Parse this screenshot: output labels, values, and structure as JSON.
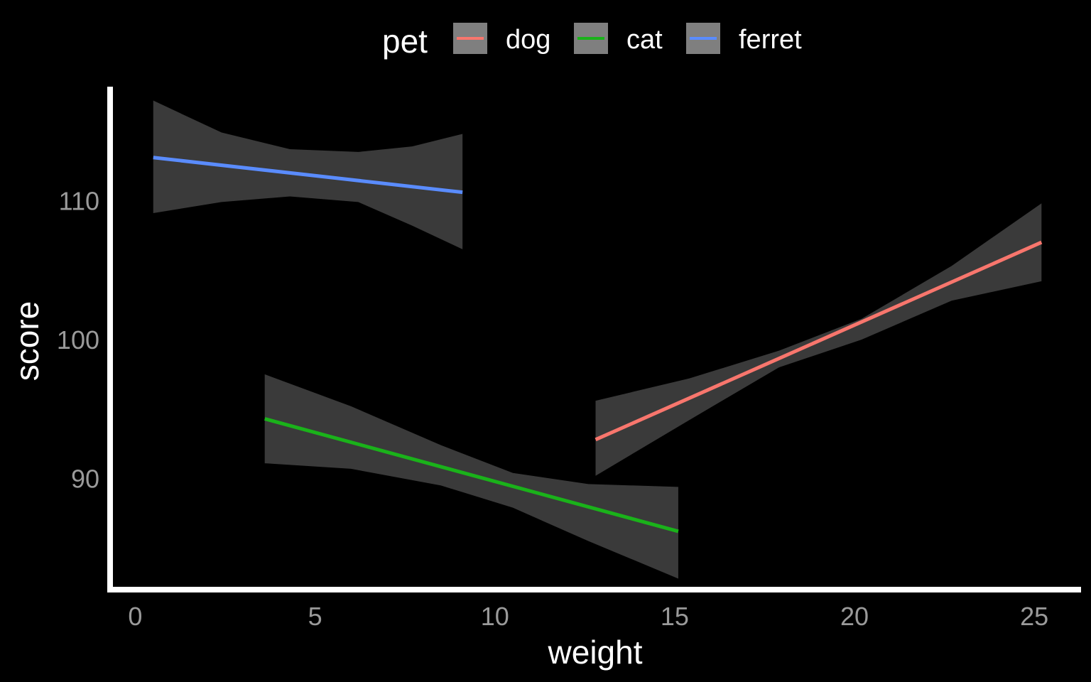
{
  "chart_data": {
    "type": "line",
    "xlabel": "weight",
    "ylabel": "score",
    "xlim": [
      -0.7,
      26.3
    ],
    "ylim": [
      81.8,
      118.2
    ],
    "x_ticks": [
      0,
      5,
      10,
      15,
      20,
      25
    ],
    "y_ticks": [
      90,
      100,
      110
    ],
    "grid": false,
    "legend": {
      "title": "pet",
      "position": "top",
      "entries": [
        "dog",
        "cat",
        "ferret"
      ]
    },
    "background": "#000000",
    "axis_color": "#ffffff",
    "ribbon_color": "#3a3a3a",
    "series": [
      {
        "name": "dog",
        "color": "#f8766d",
        "x": [
          12.8,
          25.2
        ],
        "y": [
          92.8,
          107.0
        ],
        "band_x": [
          12.8,
          15.4,
          17.9,
          20.2,
          22.7,
          25.2
        ],
        "band_upper": [
          95.6,
          97.2,
          99.2,
          101.5,
          105.3,
          109.8
        ],
        "band_lower": [
          90.2,
          94.2,
          98.0,
          100.0,
          102.8,
          104.2
        ]
      },
      {
        "name": "cat",
        "color": "#1ab21a",
        "x": [
          3.6,
          15.1
        ],
        "y": [
          94.3,
          86.2
        ],
        "band_x": [
          3.6,
          6.0,
          8.5,
          10.5,
          12.6,
          15.1
        ],
        "band_upper": [
          97.5,
          95.2,
          92.4,
          90.4,
          89.6,
          89.4
        ],
        "band_lower": [
          91.1,
          90.7,
          89.5,
          87.9,
          85.5,
          82.8
        ]
      },
      {
        "name": "ferret",
        "color": "#5a8cff",
        "x": [
          0.5,
          9.1
        ],
        "y": [
          113.1,
          110.6
        ],
        "band_x": [
          0.5,
          2.4,
          4.3,
          6.2,
          7.7,
          9.1
        ],
        "band_upper": [
          117.2,
          114.9,
          113.7,
          113.5,
          113.9,
          114.8
        ],
        "band_lower": [
          109.1,
          109.9,
          110.3,
          109.9,
          108.2,
          106.5
        ]
      }
    ]
  }
}
